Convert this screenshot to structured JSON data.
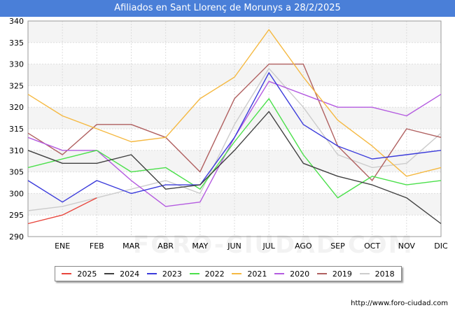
{
  "header": {
    "title": "Afiliados en Sant Llorenç de Morunys a 28/2/2025"
  },
  "footer": {
    "source": "http://www.foro-ciudad.com"
  },
  "watermark": "FORO-CIUDAD.COM",
  "chart_data": {
    "type": "line",
    "title": "Afiliados en Sant Llorenç de Morunys a 28/2/2025",
    "categories": [
      "",
      "ENE",
      "FEB",
      "MAR",
      "ABR",
      "MAY",
      "JUN",
      "JUL",
      "AGO",
      "SEP",
      "OCT",
      "NOV",
      "DIC"
    ],
    "ylim": [
      290,
      340
    ],
    "yticks": [
      290,
      295,
      300,
      305,
      310,
      315,
      320,
      325,
      330,
      335,
      340
    ],
    "grid": true,
    "legend": "bottom",
    "series": [
      {
        "name": "2025",
        "color": "#e8453c",
        "values": [
          293,
          295,
          299,
          null,
          null,
          null,
          null,
          null,
          null,
          null,
          null,
          null,
          null
        ]
      },
      {
        "name": "2024",
        "color": "#404040",
        "values": [
          310,
          307,
          307,
          309,
          301,
          302,
          310,
          319,
          307,
          304,
          302,
          299,
          293
        ]
      },
      {
        "name": "2023",
        "color": "#3b3bdb",
        "values": [
          303,
          298,
          303,
          300,
          302,
          302,
          313,
          328,
          316,
          311,
          308,
          309,
          310
        ]
      },
      {
        "name": "2022",
        "color": "#4be04b",
        "values": [
          306,
          308,
          310,
          305,
          306,
          301,
          312,
          322,
          309,
          299,
          304,
          302,
          303
        ]
      },
      {
        "name": "2021",
        "color": "#f5b942",
        "values": [
          323,
          318,
          315,
          312,
          313,
          322,
          327,
          338,
          327,
          317,
          311,
          304,
          306
        ]
      },
      {
        "name": "2020",
        "color": "#b45be0",
        "values": [
          313,
          310,
          310,
          303,
          297,
          298,
          313,
          326,
          323,
          320,
          320,
          318,
          323
        ]
      },
      {
        "name": "2019",
        "color": "#b06060",
        "values": [
          314,
          309,
          316,
          316,
          313,
          305,
          322,
          330,
          330,
          311,
          303,
          315,
          313
        ]
      },
      {
        "name": "2018",
        "color": "#cccccc",
        "values": [
          296,
          297,
          299,
          301,
          303,
          300,
          316,
          329,
          320,
          309,
          306,
          307,
          314
        ]
      }
    ]
  }
}
